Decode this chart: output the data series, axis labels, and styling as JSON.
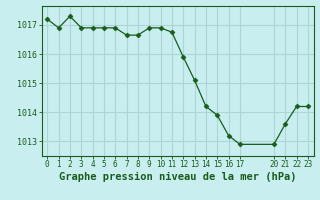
{
  "x": [
    0,
    1,
    2,
    3,
    4,
    5,
    6,
    7,
    8,
    9,
    10,
    11,
    12,
    13,
    14,
    15,
    16,
    17,
    20,
    21,
    22,
    23
  ],
  "y": [
    1017.2,
    1016.9,
    1017.3,
    1016.9,
    1016.9,
    1016.9,
    1016.9,
    1016.65,
    1016.65,
    1016.9,
    1016.9,
    1016.75,
    1015.9,
    1015.1,
    1014.2,
    1013.9,
    1013.2,
    1012.9,
    1012.9,
    1013.6,
    1014.2,
    1014.2
  ],
  "x_plot": [
    0,
    1,
    2,
    3,
    4,
    5,
    6,
    7,
    8,
    9,
    10,
    11,
    12,
    13,
    14,
    15,
    16,
    17,
    20,
    21,
    22,
    23
  ],
  "line_color": "#1a5c1a",
  "marker_color": "#1a5c1a",
  "bg_color": "#c8eef0",
  "grid_color": "#aed4d8",
  "title": "Graphe pression niveau de la mer (hPa)",
  "title_color": "#1a5c1a",
  "ylabel_ticks": [
    1013,
    1014,
    1015,
    1016,
    1017
  ],
  "xtick_positions": [
    0,
    1,
    2,
    3,
    4,
    5,
    6,
    7,
    8,
    9,
    10,
    11,
    12,
    13,
    14,
    15,
    16,
    17,
    20,
    21,
    22,
    23
  ],
  "xtick_labels": [
    "0",
    "1",
    "2",
    "3",
    "4",
    "5",
    "6",
    "7",
    "8",
    "9",
    "10",
    "11",
    "12",
    "13",
    "14",
    "15",
    "16",
    "17",
    "20",
    "21",
    "22",
    "23"
  ],
  "xlim": [
    -0.5,
    23.5
  ],
  "ylim": [
    1012.5,
    1017.65
  ],
  "title_fontsize": 7.5,
  "tick_fontsize": 5.5,
  "ytick_fontsize": 6.0
}
